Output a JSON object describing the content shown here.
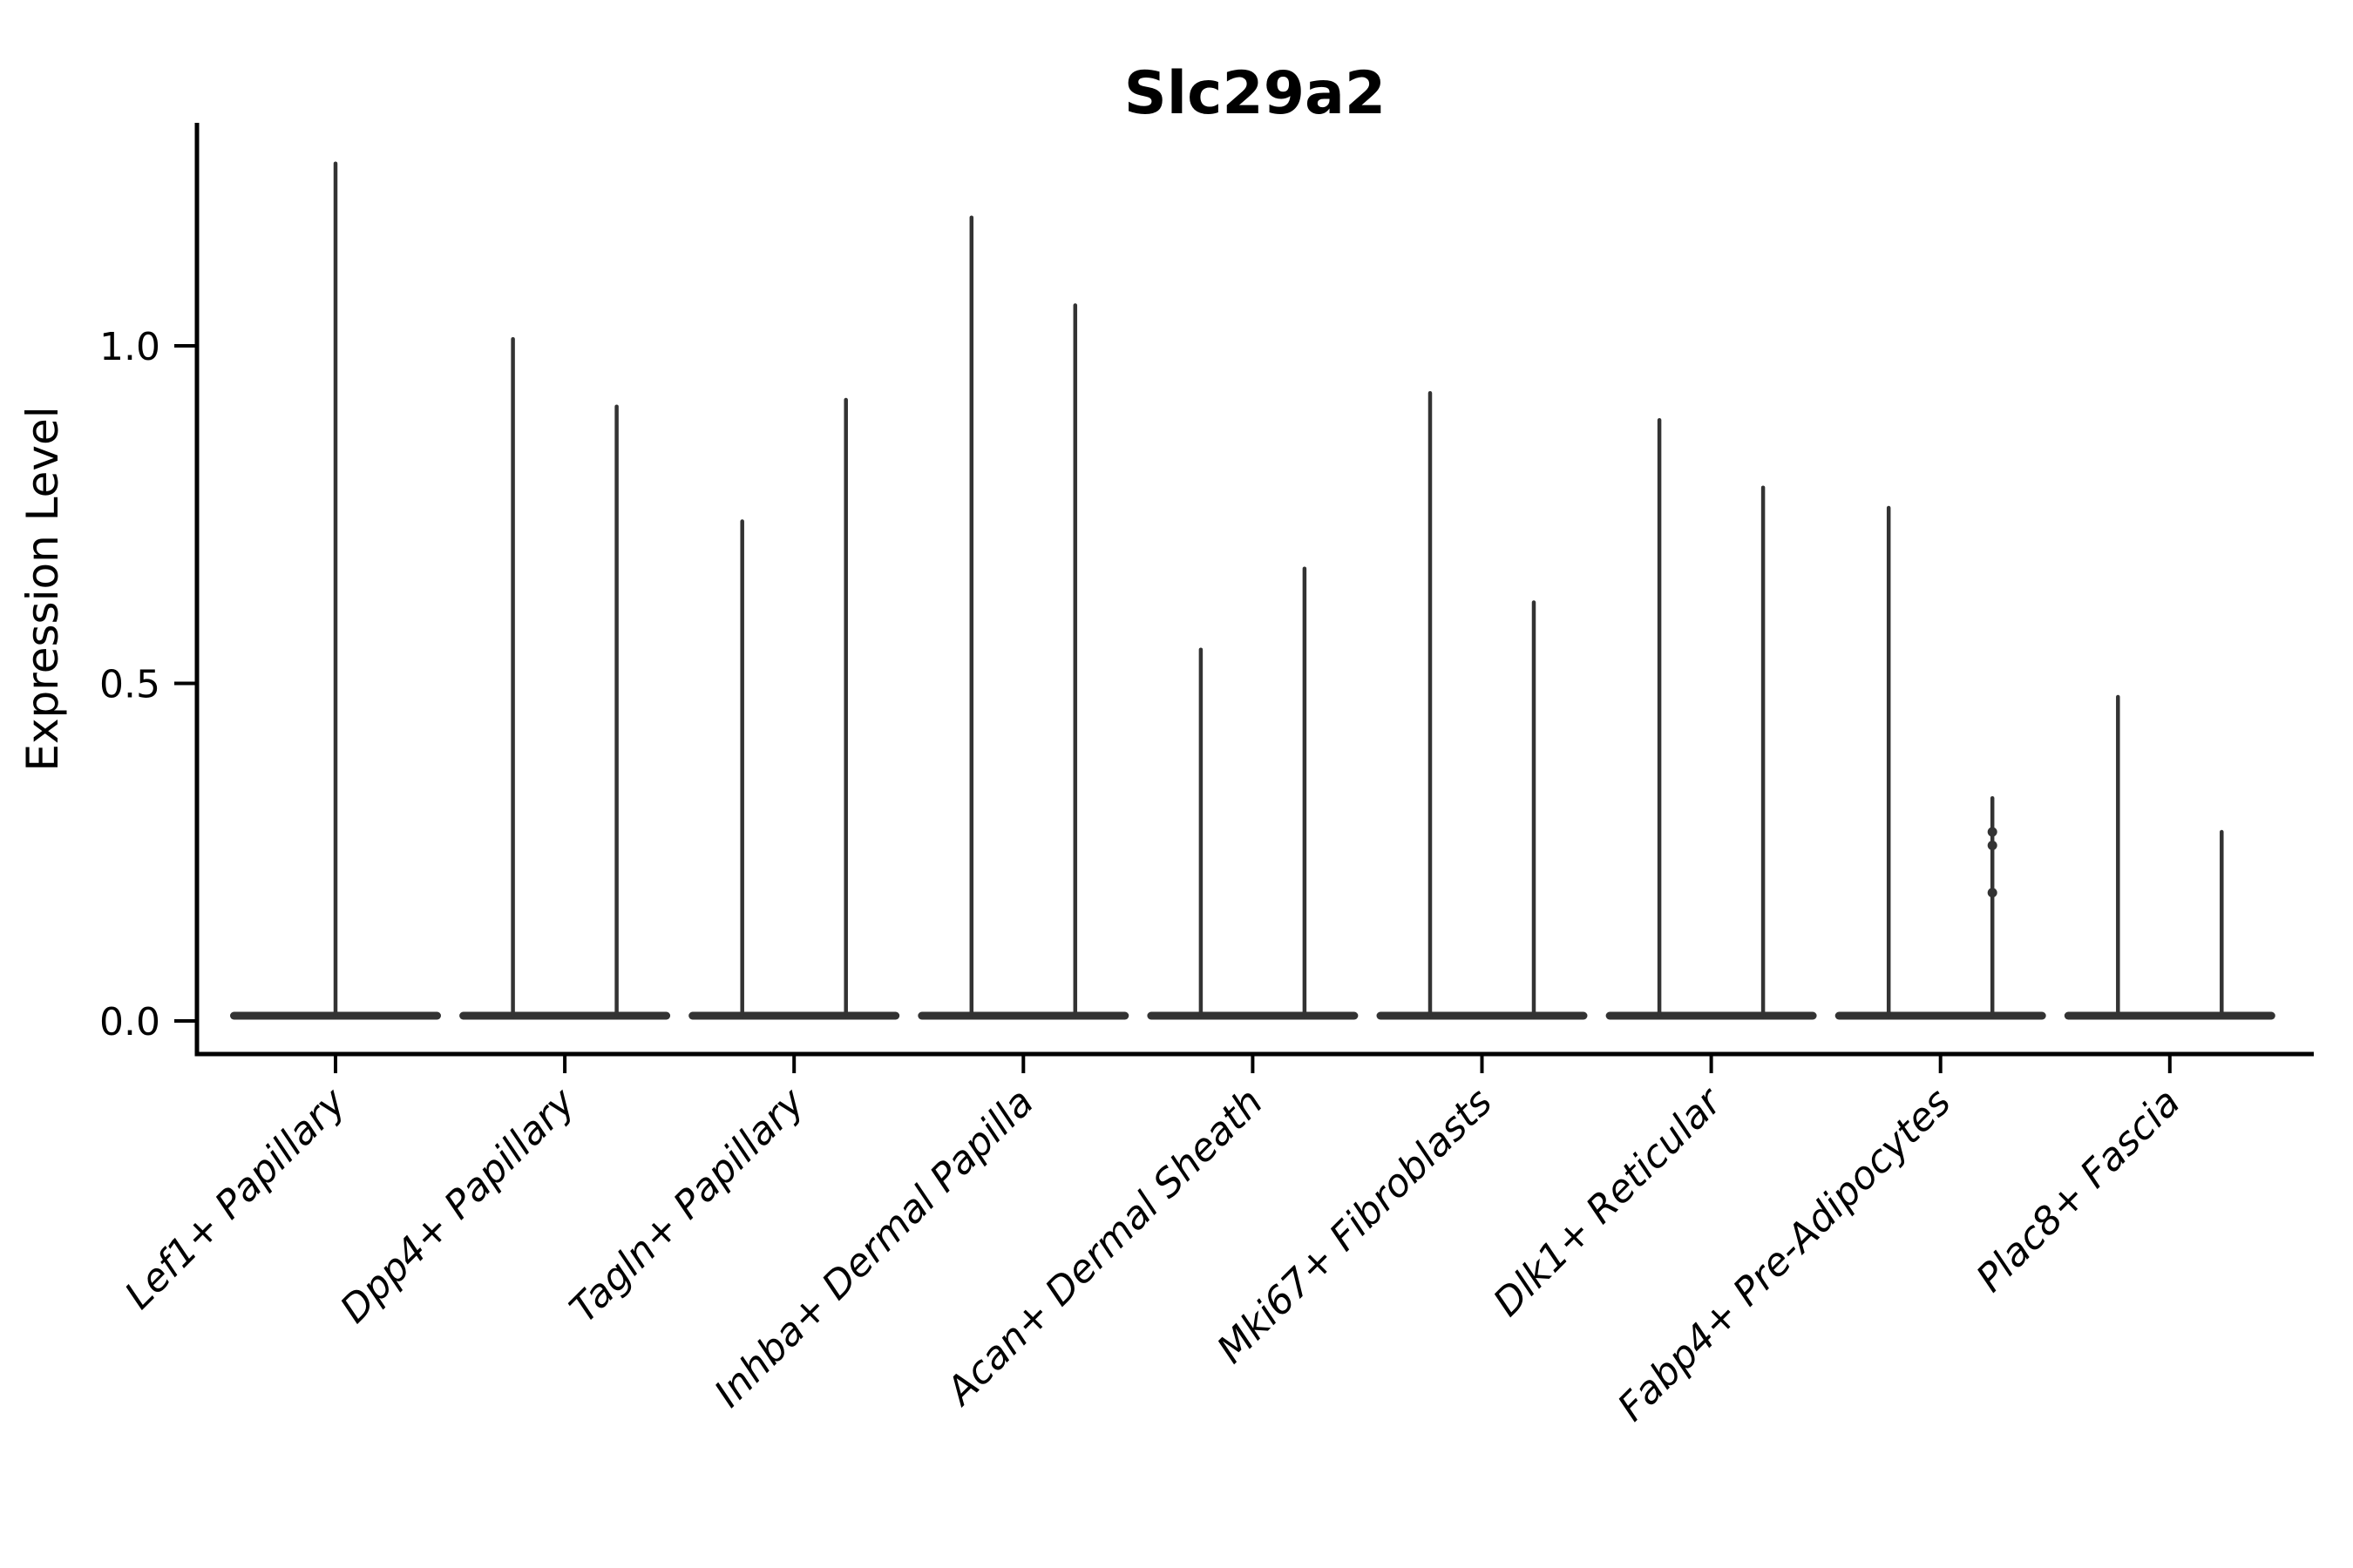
{
  "chart_data": {
    "type": "violin",
    "title": "Slc29a2",
    "ylabel": "Expression Level",
    "xlabel": "",
    "ylim": [
      -0.05,
      1.33
    ],
    "grid": false,
    "legend": null,
    "yticks": [
      {
        "value": 0.0,
        "label": "0.0"
      },
      {
        "value": 0.5,
        "label": "0.5"
      },
      {
        "value": 1.0,
        "label": "1.0"
      }
    ],
    "categories": [
      "Lef1+ Papillary",
      "Dpp4+ Papillary",
      "Tagln+ Papillary",
      "Inhba+ Dermal Papilla",
      "Acan+ Dermal Sheath",
      "Mki67+ Fibroblasts",
      "Dlk1+ Reticular",
      "Fabp4+ Pre-Adipocytes",
      "Plac8+ Fascia"
    ],
    "violins": [
      {
        "category": "Lef1+ Papillary",
        "spikes": [
          {
            "position": "center",
            "max": 1.27
          }
        ]
      },
      {
        "category": "Dpp4+ Papillary",
        "spikes": [
          {
            "position": "left",
            "max": 1.01
          },
          {
            "position": "right",
            "max": 0.91
          }
        ]
      },
      {
        "category": "Tagln+ Papillary",
        "spikes": [
          {
            "position": "left",
            "max": 0.74
          },
          {
            "position": "right",
            "max": 0.92
          }
        ]
      },
      {
        "category": "Inhba+ Dermal Papilla",
        "spikes": [
          {
            "position": "left",
            "max": 1.19
          },
          {
            "position": "right",
            "max": 1.06
          }
        ]
      },
      {
        "category": "Acan+ Dermal Sheath",
        "spikes": [
          {
            "position": "left",
            "max": 0.55
          },
          {
            "position": "right",
            "max": 0.67
          }
        ]
      },
      {
        "category": "Mki67+ Fibroblasts",
        "spikes": [
          {
            "position": "left",
            "max": 0.93
          },
          {
            "position": "right",
            "max": 0.62
          }
        ]
      },
      {
        "category": "Dlk1+ Reticular",
        "spikes": [
          {
            "position": "left",
            "max": 0.89
          },
          {
            "position": "right",
            "max": 0.79
          }
        ]
      },
      {
        "category": "Fabp4+ Pre-Adipocytes",
        "spikes": [
          {
            "position": "left",
            "max": 0.76
          },
          {
            "position": "right",
            "max": 0.33,
            "bumps": [
              0.28,
              0.26,
              0.19
            ]
          }
        ]
      },
      {
        "category": "Plac8+ Fascia",
        "spikes": [
          {
            "position": "left",
            "max": 0.48
          },
          {
            "position": "right",
            "max": 0.28
          }
        ]
      }
    ],
    "baseline_value": 0.0,
    "colors": {
      "violin": "#333333",
      "axis": "#000000",
      "text": "#000000"
    },
    "layout_hints": {
      "xtick_rotation": 45,
      "xtick_style": "italic",
      "visible_spines": [
        "left",
        "bottom"
      ],
      "legend_position": "none"
    }
  }
}
